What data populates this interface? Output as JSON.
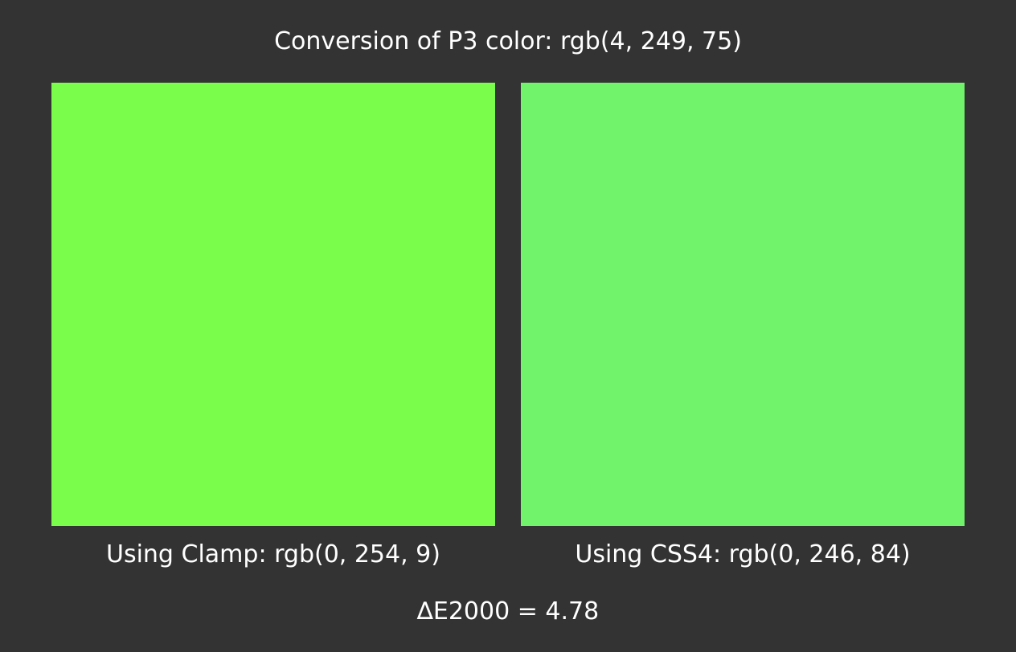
{
  "title": "Conversion of P3 color: rgb(4, 249, 75)",
  "swatches": [
    {
      "caption": "Using Clamp: rgb(0, 254, 9)",
      "color": "#7bfd4b"
    },
    {
      "caption": "Using CSS4: rgb(0, 246, 84)",
      "color": "#71f36c"
    }
  ],
  "delta": "∆E2000 = 4.78",
  "colors": {
    "background": "#333333",
    "text": "#ffffff"
  }
}
